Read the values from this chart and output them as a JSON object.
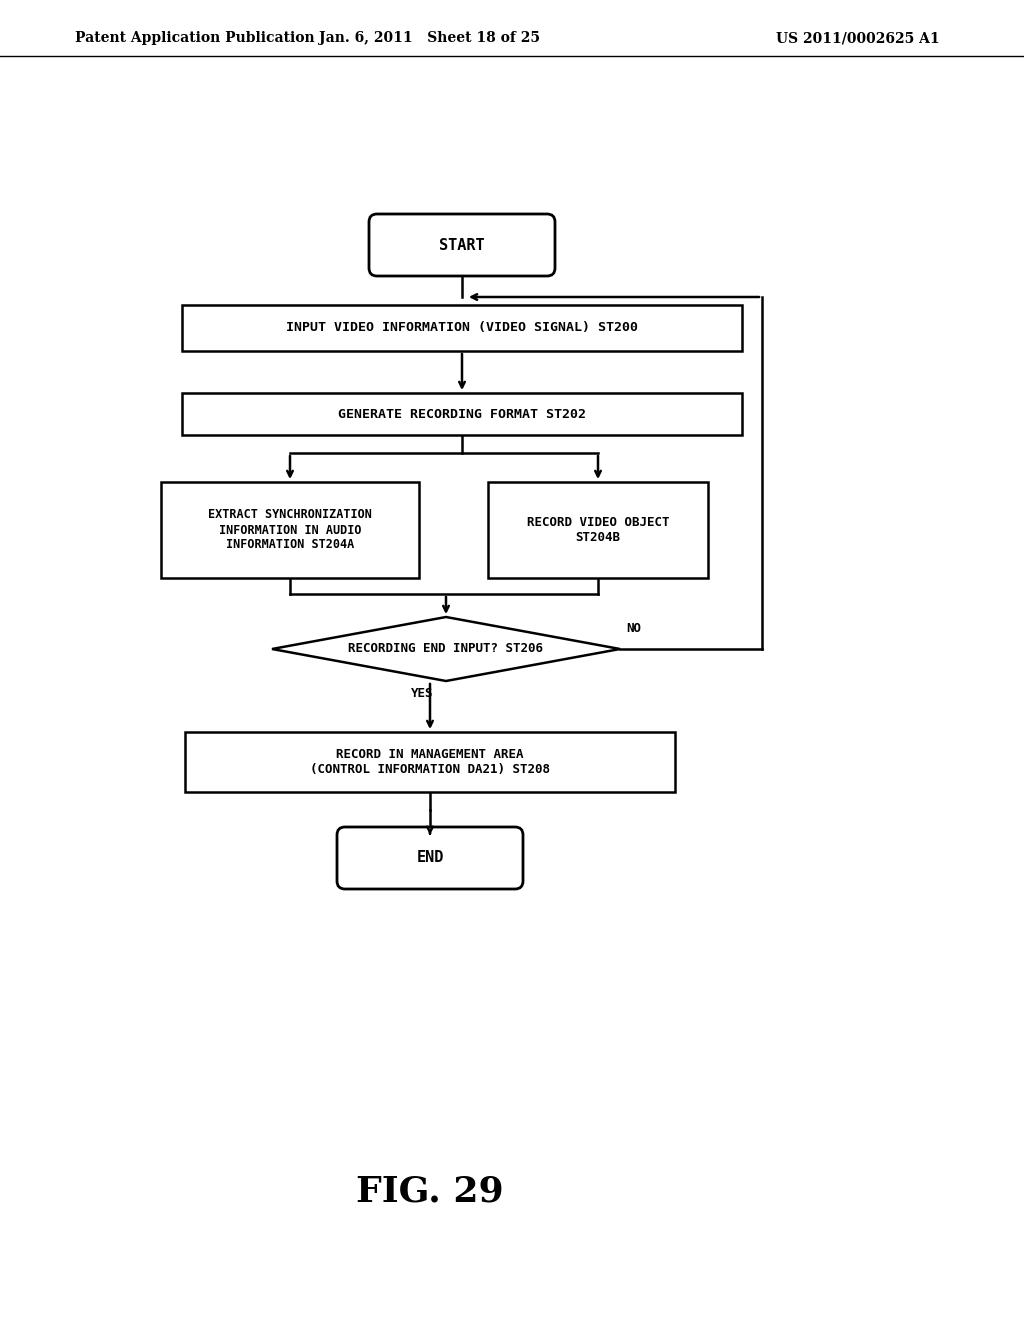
{
  "bg_color": "#ffffff",
  "header_left": "Patent Application Publication",
  "header_mid": "Jan. 6, 2011   Sheet 18 of 25",
  "header_right": "US 2011/0002625 A1",
  "figure_label": "FIG. 29",
  "start_label": "START",
  "end_label": "END",
  "st200_label": "INPUT VIDEO INFORMATION (VIDEO SIGNAL) ST200",
  "st202_label": "GENERATE RECORDING FORMAT ST202",
  "st204a_label": "EXTRACT SYNCHRONIZATION\nINFORMATION IN AUDIO\nINFORMATION ST204A",
  "st204b_label": "RECORD VIDEO OBJECT\nST204B",
  "st206_label": "RECORDING END INPUT? ST206",
  "st208_label": "RECORD IN MANAGEMENT AREA\n(CONTROL INFORMATION DA21) ST208",
  "yes_label": "YES",
  "no_label": "NO"
}
